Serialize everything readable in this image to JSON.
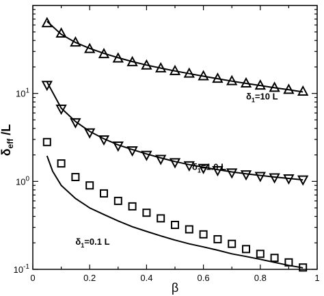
{
  "chart_data": {
    "type": "scatter",
    "title": "",
    "xlabel": "β",
    "ylabel": {
      "base": "δ",
      "sub": "eff",
      "suffix": " /L"
    },
    "xscale": "linear",
    "yscale": "log",
    "xlim": [
      0,
      1
    ],
    "ylim": [
      0.1,
      100
    ],
    "xticks": [
      0,
      0.2,
      0.4,
      0.6,
      0.8,
      1
    ],
    "xtick_labels": [
      "0",
      "0.2",
      "0.4",
      "0.6",
      "0.8",
      "1"
    ],
    "yticks": [
      0.1,
      1,
      10
    ],
    "ytick_labels": [
      {
        "base": "10",
        "exp": "-1"
      },
      {
        "base": "10",
        "exp": "0"
      },
      {
        "base": "10",
        "exp": "1"
      }
    ],
    "grid": false,
    "legend": "none",
    "annotations": [
      {
        "id": "d10",
        "sym": "δ",
        "sub": "1",
        "rest": "=10 L",
        "x": 0.75,
        "y": 8.5
      },
      {
        "id": "d1",
        "sym": "δ",
        "sub": "1",
        "rest": "=1.0 L",
        "x": 0.56,
        "y": 1.35
      },
      {
        "id": "d01",
        "sym": "δ",
        "sub": "1",
        "rest": "=0.1 L",
        "x": 0.15,
        "y": 0.19
      }
    ],
    "series": [
      {
        "kind": "scatter",
        "marker": "triangle-up",
        "x": [
          0.05,
          0.1,
          0.15,
          0.2,
          0.25,
          0.3,
          0.35,
          0.4,
          0.45,
          0.5,
          0.55,
          0.6,
          0.65,
          0.7,
          0.75,
          0.8,
          0.85,
          0.9,
          0.95
        ],
        "y": [
          63,
          48,
          38,
          32,
          28,
          25,
          22.7,
          20.8,
          19.3,
          18,
          16.8,
          15.7,
          14.7,
          13.8,
          13,
          12.3,
          11.6,
          11,
          10.5
        ]
      },
      {
        "kind": "line",
        "x": [
          0.05,
          0.1,
          0.15,
          0.2,
          0.25,
          0.3,
          0.35,
          0.4,
          0.45,
          0.5,
          0.55,
          0.6,
          0.65,
          0.7,
          0.75,
          0.8,
          0.85,
          0.9,
          0.95
        ],
        "y": [
          66,
          47,
          38,
          32.5,
          28.5,
          25.5,
          23,
          21,
          19.4,
          18,
          16.8,
          15.7,
          14.7,
          13.8,
          13,
          12.3,
          11.6,
          11,
          10.4
        ]
      },
      {
        "kind": "scatter",
        "marker": "triangle-down",
        "x": [
          0.05,
          0.1,
          0.15,
          0.2,
          0.25,
          0.3,
          0.35,
          0.4,
          0.45,
          0.5,
          0.55,
          0.6,
          0.65,
          0.7,
          0.75,
          0.8,
          0.85,
          0.9,
          0.95
        ],
        "y": [
          12.5,
          6.7,
          4.7,
          3.6,
          3.0,
          2.55,
          2.25,
          2.0,
          1.8,
          1.65,
          1.52,
          1.42,
          1.34,
          1.26,
          1.2,
          1.15,
          1.11,
          1.08,
          1.05
        ]
      },
      {
        "kind": "line",
        "x": [
          0.05,
          0.1,
          0.15,
          0.2,
          0.25,
          0.3,
          0.35,
          0.4,
          0.45,
          0.5,
          0.55,
          0.6,
          0.65,
          0.7,
          0.75,
          0.8,
          0.85,
          0.9,
          0.95
        ],
        "y": [
          13.5,
          6.8,
          4.8,
          3.7,
          3.05,
          2.6,
          2.3,
          2.05,
          1.85,
          1.68,
          1.55,
          1.45,
          1.36,
          1.28,
          1.22,
          1.17,
          1.12,
          1.08,
          1.04
        ]
      },
      {
        "kind": "scatter",
        "marker": "square",
        "x": [
          0.05,
          0.1,
          0.15,
          0.2,
          0.25,
          0.3,
          0.35,
          0.4,
          0.45,
          0.5,
          0.55,
          0.6,
          0.65,
          0.7,
          0.75,
          0.8,
          0.85,
          0.9,
          0.95
        ],
        "y": [
          2.8,
          1.6,
          1.12,
          0.9,
          0.73,
          0.6,
          0.52,
          0.44,
          0.38,
          0.32,
          0.285,
          0.25,
          0.22,
          0.195,
          0.17,
          0.15,
          0.135,
          0.12,
          0.105
        ]
      },
      {
        "kind": "line",
        "x": [
          0.05,
          0.07,
          0.1,
          0.15,
          0.2,
          0.25,
          0.3,
          0.35,
          0.4,
          0.45,
          0.5,
          0.55,
          0.6,
          0.65,
          0.7,
          0.75,
          0.8,
          0.85,
          0.9,
          0.95
        ],
        "y": [
          1.95,
          1.3,
          0.9,
          0.64,
          0.5,
          0.42,
          0.355,
          0.305,
          0.27,
          0.24,
          0.215,
          0.195,
          0.18,
          0.165,
          0.15,
          0.14,
          0.13,
          0.12,
          0.111,
          0.104
        ]
      }
    ]
  }
}
